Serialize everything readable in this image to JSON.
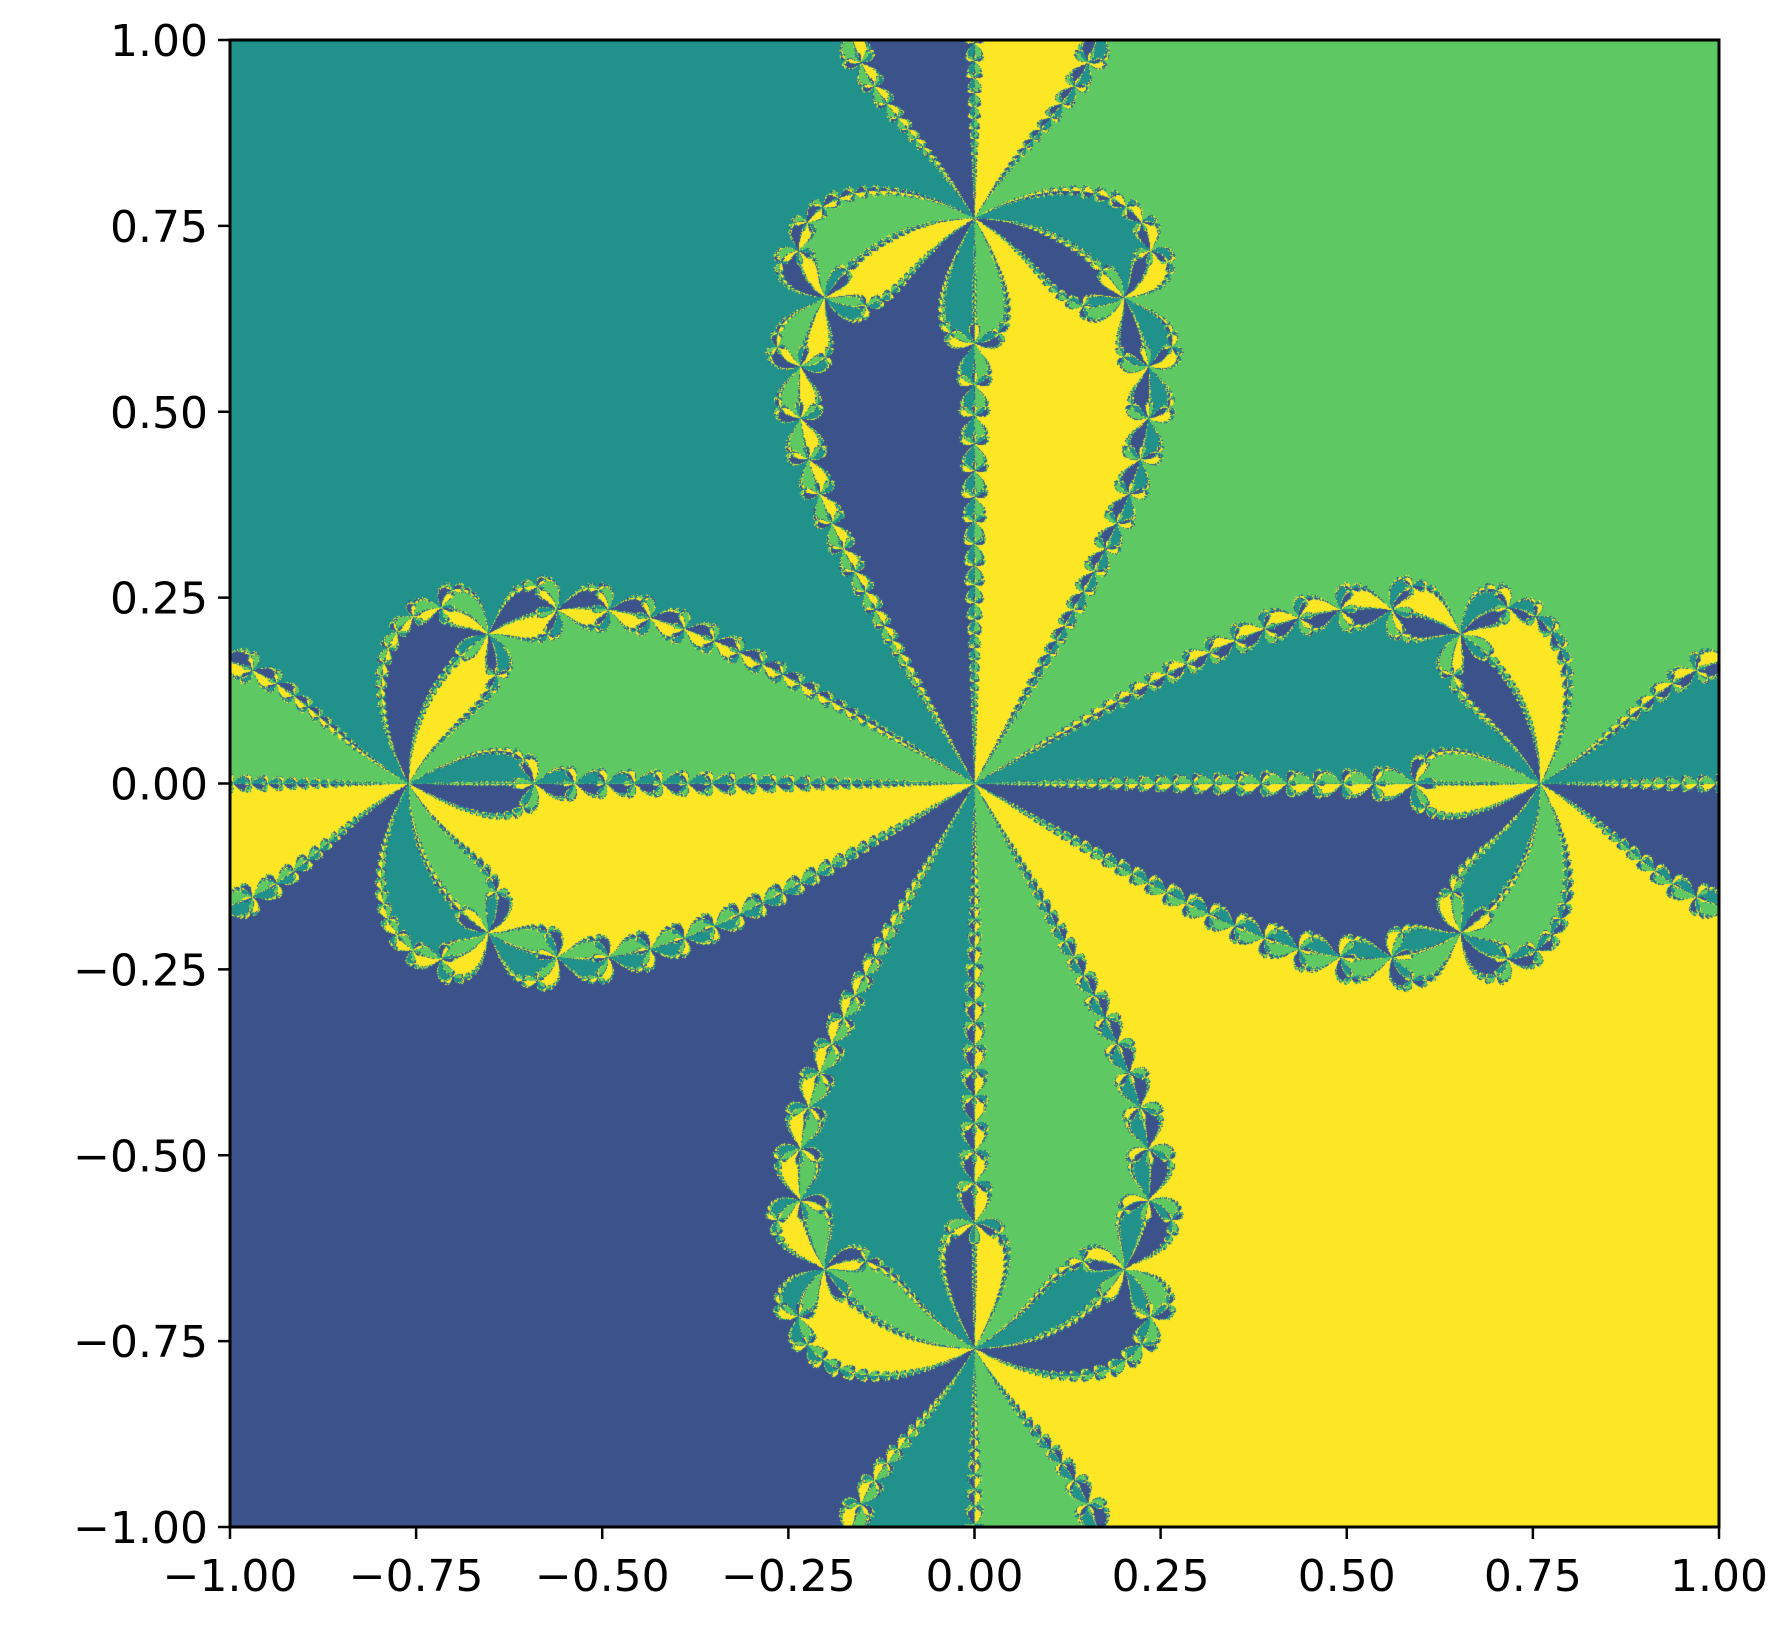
{
  "chart_data": {
    "type": "heatmap",
    "title": "",
    "xlabel": "",
    "ylabel": "",
    "xlim": [
      -1.0,
      1.0
    ],
    "ylim": [
      -1.0,
      1.0
    ],
    "grid": false,
    "legend": "none",
    "description_of_values": "Newton fractal basins of attraction for roots of z^4 = -1 (roots at angles 45°, 135°, 225°, 315°)",
    "x_ticks": [
      -1.0,
      -0.75,
      -0.5,
      -0.25,
      0.0,
      0.25,
      0.5,
      0.75,
      1.0
    ],
    "x_tick_labels": [
      "−1.00",
      "−0.75",
      "−0.50",
      "−0.25",
      "0.00",
      "0.25",
      "0.50",
      "0.75",
      "1.00"
    ],
    "y_ticks": [
      1.0,
      0.75,
      0.5,
      0.25,
      0.0,
      -0.25,
      -0.5,
      -0.75,
      -1.0
    ],
    "y_tick_labels": [
      "1.00",
      "0.75",
      "0.50",
      "0.25",
      "0.00",
      "−0.25",
      "−0.50",
      "−0.75",
      "−1.00"
    ],
    "roots": [
      {
        "re": 0.7071,
        "im": 0.7071
      },
      {
        "re": -0.7071,
        "im": 0.7071
      },
      {
        "re": -0.7071,
        "im": -0.7071
      },
      {
        "re": 0.7071,
        "im": -0.7071
      }
    ],
    "root_colors": [
      "#5ec962",
      "#21918c",
      "#3b528b",
      "#fde725"
    ],
    "colormap": "viridis"
  }
}
